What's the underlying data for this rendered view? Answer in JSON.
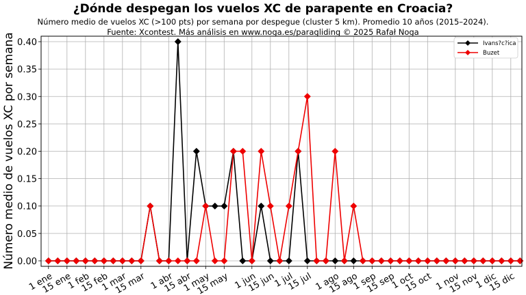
{
  "chart_data": {
    "type": "line",
    "title": "¿Dónde despegan los vuelos XC de parapente en Croacia?",
    "subtitle_line1": "Número medio de vuelos XC (>100 pts) por semana por despegue (cluster 5 km). Promedio 10 años (2015–2024).",
    "subtitle_line2": "Fuente: Xcontest. Más análisis en www.noga.es/paragliding © 2025 Rafał Noga",
    "xlabel": "",
    "ylabel": "Número medio de vuelos XC por semana",
    "ylim": [
      -0.01,
      0.41
    ],
    "xlim": [
      0.2,
      52.2
    ],
    "yticks": [
      0.0,
      0.05,
      0.1,
      0.15,
      0.2,
      0.25,
      0.3,
      0.35,
      0.4
    ],
    "ytick_labels": [
      "0.00",
      "0.05",
      "0.10",
      "0.15",
      "0.20",
      "0.25",
      "0.30",
      "0.35",
      "0.40"
    ],
    "x_tick_labels": [
      "1 ene",
      "15 ene",
      "1 feb",
      "15 feb",
      "1 mar",
      "15 mar",
      "1 abr",
      "15 abr",
      "1 may",
      "15 may",
      "1 jun",
      "15 jun",
      "1 jul",
      "15 jul",
      "1 ago",
      "15 ago",
      "1 sep",
      "15 sep",
      "1 oct",
      "15 oct",
      "1 nov",
      "15 nov",
      "1 dic",
      "15 dic"
    ],
    "x_ticks": [
      1,
      3,
      5,
      7,
      9,
      11,
      14,
      16,
      18,
      20,
      23,
      25,
      27,
      29,
      32,
      34,
      36,
      38,
      40,
      42,
      45,
      47,
      49,
      51
    ],
    "grid": true,
    "legend_position": "top-right",
    "x": [
      1,
      2,
      3,
      4,
      5,
      6,
      7,
      8,
      9,
      10,
      11,
      12,
      13,
      14,
      15,
      16,
      17,
      18,
      19,
      20,
      21,
      22,
      23,
      24,
      25,
      26,
      27,
      28,
      29,
      30,
      31,
      32,
      33,
      34,
      35,
      36,
      37,
      38,
      39,
      40,
      41,
      42,
      43,
      44,
      45,
      46,
      47,
      48,
      49,
      50,
      51,
      52
    ],
    "series": [
      {
        "name": "Ivans?c?ica",
        "color": "#000000",
        "values": [
          0,
          0,
          0,
          0,
          0,
          0,
          0,
          0,
          0,
          0,
          0,
          0.1,
          0,
          0,
          0.4,
          0,
          0.2,
          0.1,
          0.1,
          0.1,
          0.2,
          0,
          0,
          0.1,
          0,
          0,
          0,
          0.2,
          0,
          0,
          0,
          0,
          0,
          0,
          0,
          0,
          0,
          0,
          0,
          0,
          0,
          0,
          0,
          0,
          0,
          0,
          0,
          0,
          0,
          0,
          0,
          0
        ]
      },
      {
        "name": "Buzet",
        "color": "#ee0000",
        "values": [
          0,
          0,
          0,
          0,
          0,
          0,
          0,
          0,
          0,
          0,
          0,
          0.1,
          0,
          0,
          0,
          0,
          0,
          0.1,
          0,
          0,
          0.2,
          0.2,
          0,
          0.2,
          0.1,
          0,
          0.1,
          0.2,
          0.3,
          0,
          0,
          0.2,
          0,
          0.1,
          0,
          0,
          0,
          0,
          0,
          0,
          0,
          0,
          0,
          0,
          0,
          0,
          0,
          0,
          0,
          0,
          0,
          0
        ]
      }
    ]
  }
}
